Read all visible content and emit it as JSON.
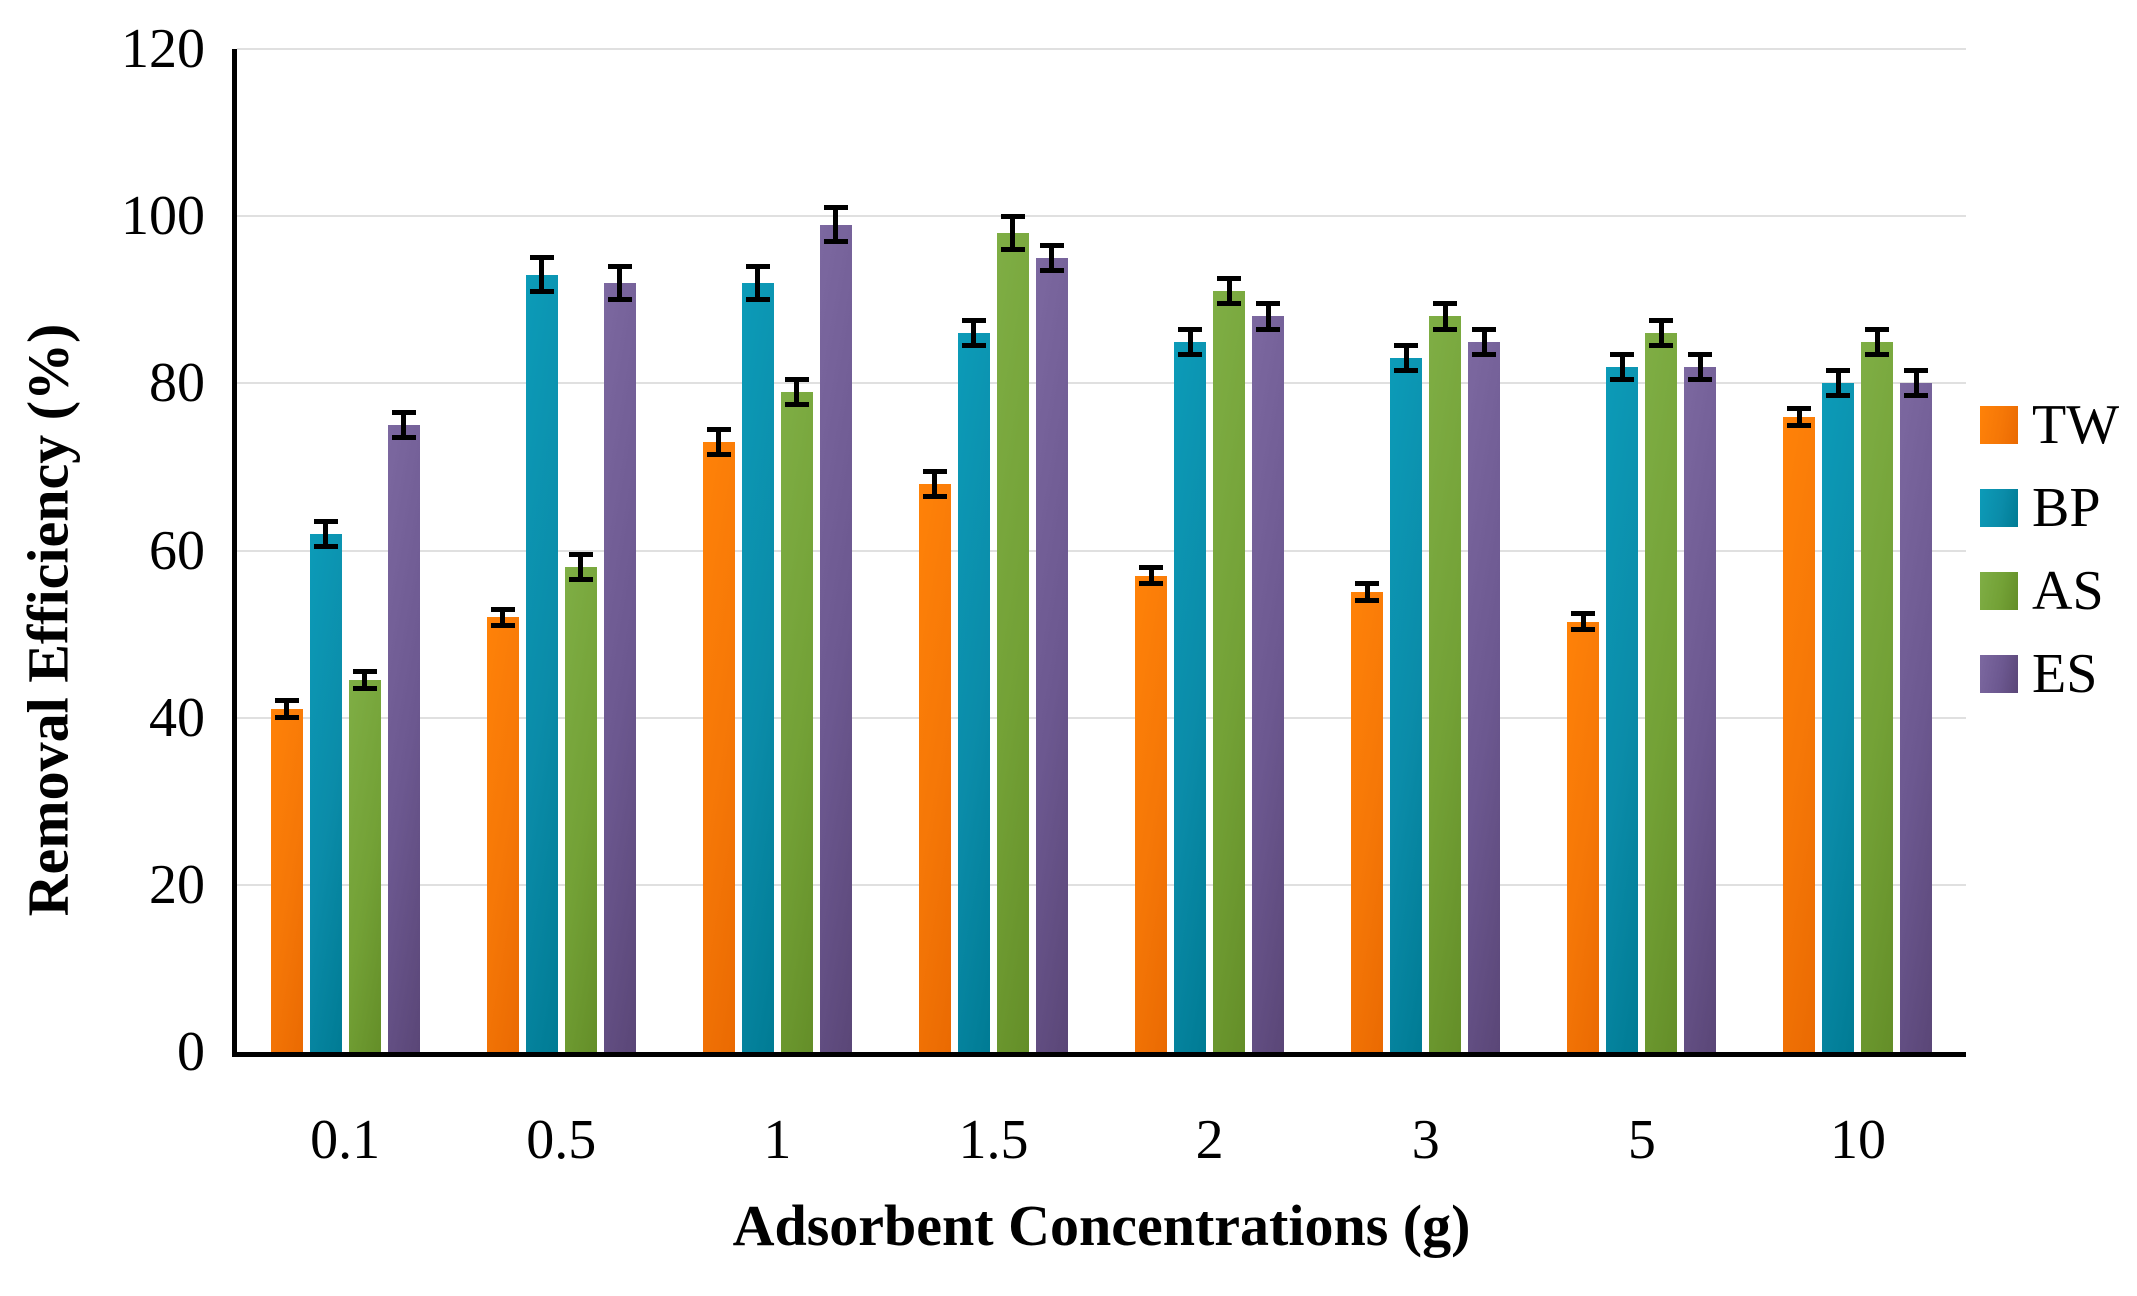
{
  "chart_data": {
    "type": "bar",
    "title": "",
    "xlabel": "Adsorbent Concentrations (g)",
    "ylabel": "Removal Efficiency (%)",
    "categories": [
      "0.1",
      "0.5",
      "1",
      "1.5",
      "2",
      "3",
      "5",
      "10"
    ],
    "series": [
      {
        "name": "TW",
        "color": "#F57707",
        "color_light": "#FF8208",
        "color_dark": "#EA6A02",
        "values": [
          41,
          52,
          73,
          68,
          57,
          55,
          51.5,
          76
        ],
        "errors": [
          1,
          1,
          1.5,
          1.5,
          1,
          1,
          1,
          1
        ]
      },
      {
        "name": "BP",
        "color": "#0B8CA9",
        "color_light": "#0C9BB8",
        "color_dark": "#007B94",
        "values": [
          62,
          93,
          92,
          86,
          85,
          83,
          82,
          80
        ],
        "errors": [
          1.5,
          2,
          2,
          1.5,
          1.5,
          1.5,
          1.5,
          1.5
        ]
      },
      {
        "name": "AS",
        "color": "#73A136",
        "color_light": "#7FAE45",
        "color_dark": "#648E28",
        "values": [
          44.5,
          58,
          79,
          98,
          91,
          88,
          86,
          85
        ],
        "errors": [
          1,
          1.5,
          1.5,
          2,
          1.5,
          1.5,
          1.5,
          1.5
        ]
      },
      {
        "name": "ES",
        "color": "#6C5890",
        "color_light": "#7C68A0",
        "color_dark": "#5A4677",
        "values": [
          75,
          92,
          99,
          95,
          88,
          85,
          82,
          80
        ],
        "errors": [
          1.5,
          2,
          2,
          1.5,
          1.5,
          1.5,
          1.5,
          1.5
        ]
      }
    ],
    "ylim": [
      0,
      120
    ],
    "yticks": [
      0,
      20,
      40,
      60,
      80,
      100,
      120
    ],
    "grid": true,
    "error_bars": true,
    "legend_position": "right",
    "colors": {
      "grid": "#E0E0E0",
      "axis": "#000000",
      "text": "#000000",
      "background": "#FFFFFF"
    }
  }
}
